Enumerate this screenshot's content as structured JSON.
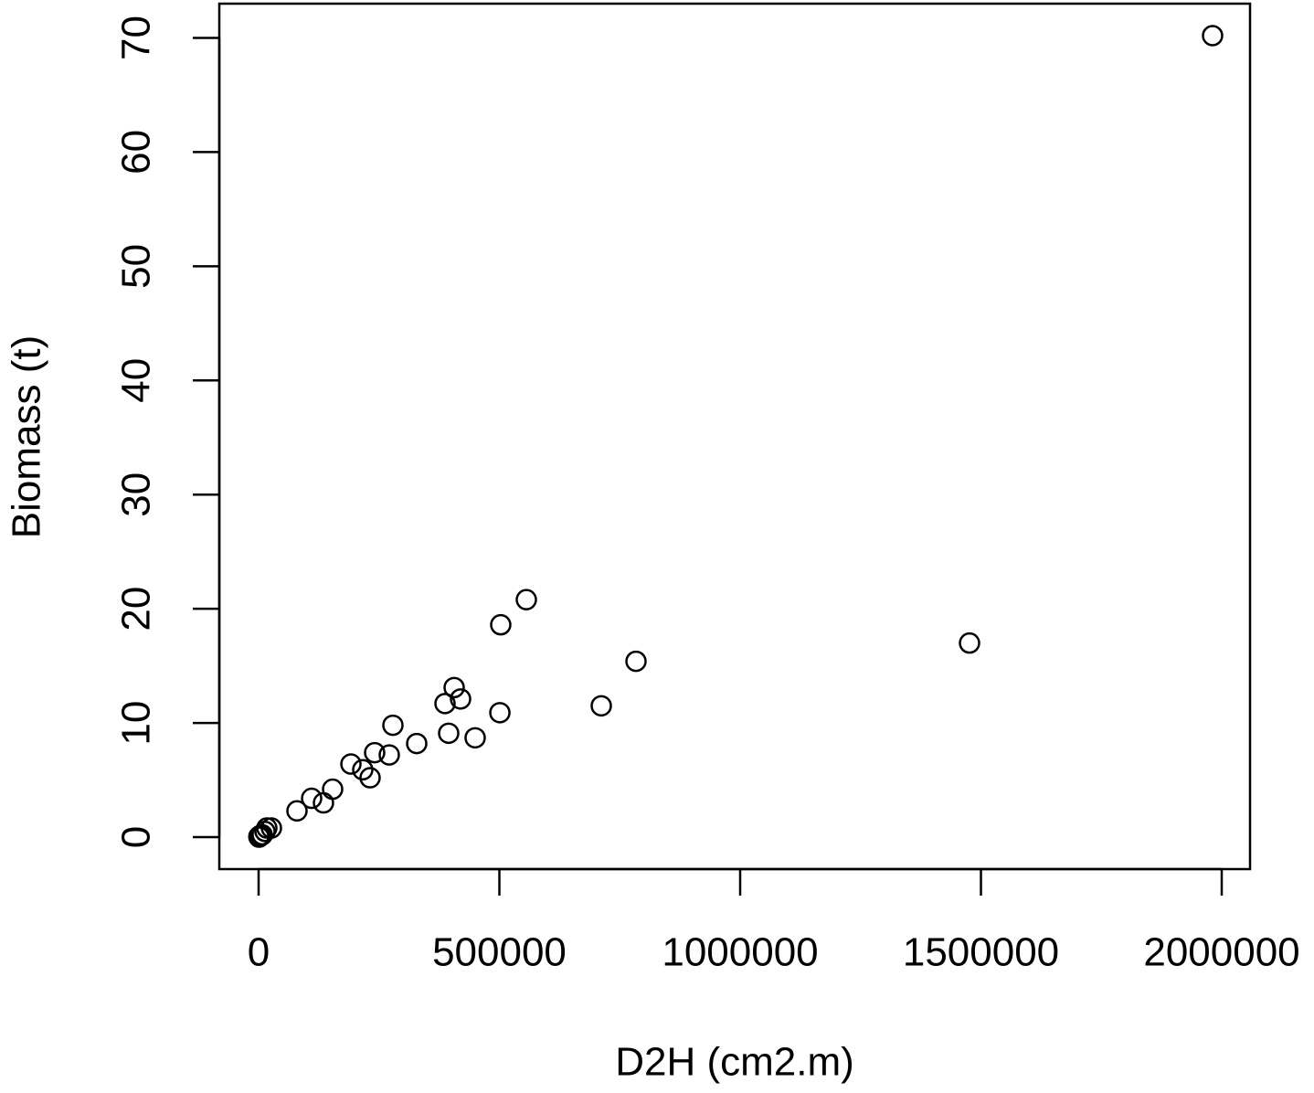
{
  "chart_data": {
    "type": "scatter",
    "x_label": "D2H (cm2.m)",
    "y_label": "Biomass (t)",
    "color": "#000000",
    "x": [
      1981000,
      1476300,
      783700,
      711600,
      556000,
      502800,
      501000,
      449700,
      419400,
      406100,
      394700,
      387100,
      328300,
      278900,
      271300,
      241000,
      231500,
      216300,
      191700,
      153700,
      134700,
      110100,
      79700,
      26600,
      17100,
      13300,
      7600,
      3800,
      1000,
      500
    ],
    "values": [
      70.2,
      17.0,
      15.4,
      11.5,
      20.8,
      18.6,
      10.9,
      8.7,
      12.1,
      13.1,
      9.1,
      11.7,
      8.2,
      9.8,
      7.2,
      7.4,
      5.2,
      5.9,
      6.4,
      4.2,
      3.0,
      3.4,
      2.3,
      0.8,
      0.8,
      0.5,
      0.2,
      0.15,
      0.0,
      0.05
    ],
    "xlim": [
      -81600,
      2058800
    ],
    "ylim": [
      -2.8,
      73.0
    ],
    "xticks": [
      0,
      500000,
      1000000,
      1500000,
      2000000
    ],
    "yticks": [
      0,
      10,
      20,
      30,
      40,
      50,
      60,
      70
    ]
  }
}
